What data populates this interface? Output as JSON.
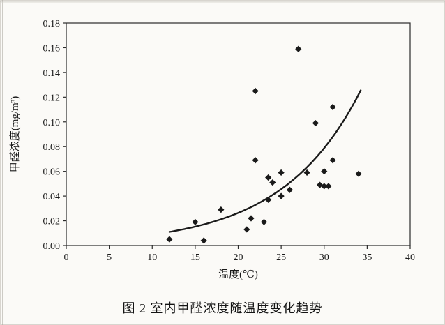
{
  "chart_data": {
    "type": "scatter",
    "caption": "图 2  室内甲醛浓度随温度变化趋势",
    "xlabel": "温度(℃)",
    "ylabel": "甲醛浓度(mg/m³)",
    "xlim": [
      0,
      40
    ],
    "ylim": [
      0,
      0.18
    ],
    "x_ticks": [
      0,
      5,
      10,
      15,
      20,
      25,
      30,
      35,
      40
    ],
    "y_ticks": [
      0.0,
      0.02,
      0.04,
      0.06,
      0.08,
      0.1,
      0.12,
      0.14,
      0.16,
      0.18
    ],
    "y_tick_labels": [
      "0.00",
      "0.02",
      "0.04",
      "0.06",
      "0.08",
      "0.10",
      "0.12",
      "0.14",
      "0.16",
      "0.18"
    ],
    "grid": false,
    "legend": false,
    "marker": "diamond",
    "marker_color": "#1a1a1a",
    "line_color": "#1a1a1a",
    "points": [
      [
        12,
        0.005
      ],
      [
        15,
        0.019
      ],
      [
        16,
        0.004
      ],
      [
        18,
        0.029
      ],
      [
        21,
        0.013
      ],
      [
        21.5,
        0.022
      ],
      [
        22,
        0.069
      ],
      [
        22,
        0.125
      ],
      [
        23,
        0.019
      ],
      [
        23.5,
        0.055
      ],
      [
        23.5,
        0.037
      ],
      [
        24,
        0.051
      ],
      [
        25,
        0.059
      ],
      [
        25,
        0.04
      ],
      [
        26,
        0.045
      ],
      [
        27,
        0.159
      ],
      [
        28,
        0.059
      ],
      [
        29,
        0.099
      ],
      [
        29.5,
        0.049
      ],
      [
        30,
        0.06
      ],
      [
        30,
        0.048
      ],
      [
        30.5,
        0.048
      ],
      [
        31,
        0.069
      ],
      [
        31,
        0.112
      ],
      [
        34,
        0.058
      ]
    ],
    "trend": {
      "type": "exponential",
      "a": 0.00296,
      "b": 0.1094,
      "x_start": 12,
      "x_end": 34.3
    }
  }
}
